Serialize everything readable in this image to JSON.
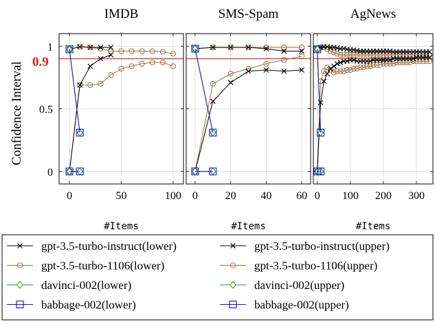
{
  "y_axis_label": "Confidence Interval",
  "threshold": {
    "value": 0.9,
    "label": "0.9",
    "color": "#e03030"
  },
  "colors": {
    "gpt-3.5-turbo-instruct": "#000000",
    "gpt-3.5-turbo-1106": "#a0703e",
    "davinci-002": "#109a10",
    "babbage-002": "#1414cc"
  },
  "legend": {
    "entries": [
      {
        "model": "gpt-3.5-turbo-instruct",
        "marker": "x",
        "label": "gpt-3.5-turbo-instruct(lower)"
      },
      {
        "model": "gpt-3.5-turbo-instruct",
        "marker": "x",
        "label": "gpt-3.5-turbo-instruct(upper)"
      },
      {
        "model": "gpt-3.5-turbo-1106",
        "marker": "o",
        "label": "gpt-3.5-turbo-1106(lower)"
      },
      {
        "model": "gpt-3.5-turbo-1106",
        "marker": "o",
        "label": "gpt-3.5-turbo-1106(upper)"
      },
      {
        "model": "davinci-002",
        "marker": "diamond",
        "label": "davinci-002(lower)"
      },
      {
        "model": "davinci-002",
        "marker": "diamond",
        "label": "davinci-002(upper)"
      },
      {
        "model": "babbage-002",
        "marker": "square",
        "label": "babbage-002(lower)"
      },
      {
        "model": "babbage-002",
        "marker": "square",
        "label": "babbage-002(upper)"
      }
    ]
  },
  "chart_data": [
    {
      "type": "line",
      "title": "IMDB",
      "xlabel": "#Items",
      "ylabel": "Confidence Interval",
      "xlim": [
        -10,
        110
      ],
      "ylim": [
        -0.1,
        1.1
      ],
      "xticks": [
        0,
        50,
        100
      ],
      "yticks": [
        0,
        0.5,
        1
      ],
      "grid": true,
      "series": [
        {
          "model": "gpt-3.5-turbo-instruct",
          "bound": "lower",
          "marker": "x",
          "x": [
            0,
            10,
            20,
            30,
            40
          ],
          "y": [
            0.0,
            0.69,
            0.84,
            0.9,
            0.93
          ]
        },
        {
          "model": "gpt-3.5-turbo-instruct",
          "bound": "upper",
          "marker": "x",
          "x": [
            0,
            10,
            20,
            30,
            40
          ],
          "y": [
            0.975,
            0.995,
            0.99,
            0.99,
            0.99
          ]
        },
        {
          "model": "gpt-3.5-turbo-1106",
          "bound": "lower",
          "marker": "o",
          "x": [
            0,
            10,
            20,
            30,
            40,
            50,
            60,
            70,
            80,
            90,
            100
          ],
          "y": [
            0.0,
            0.69,
            0.69,
            0.7,
            0.77,
            0.82,
            0.84,
            0.86,
            0.87,
            0.87,
            0.84
          ]
        },
        {
          "model": "gpt-3.5-turbo-1106",
          "bound": "upper",
          "marker": "o",
          "x": [
            0,
            10,
            20,
            30,
            40,
            50,
            60,
            70,
            80,
            90,
            100
          ],
          "y": [
            0.975,
            0.995,
            0.99,
            0.98,
            0.96,
            0.96,
            0.96,
            0.96,
            0.96,
            0.955,
            0.94
          ]
        },
        {
          "model": "davinci-002",
          "bound": "lower",
          "marker": "diamond",
          "x": [
            0,
            10
          ],
          "y": [
            0.0,
            0.0
          ]
        },
        {
          "model": "davinci-002",
          "bound": "upper",
          "marker": "diamond",
          "x": [
            0,
            10
          ],
          "y": [
            0.975,
            0.31
          ]
        },
        {
          "model": "babbage-002",
          "bound": "lower",
          "marker": "square",
          "x": [
            0,
            10
          ],
          "y": [
            0.0,
            0.0
          ]
        },
        {
          "model": "babbage-002",
          "bound": "upper",
          "marker": "square",
          "x": [
            0,
            10
          ],
          "y": [
            0.975,
            0.31
          ]
        }
      ]
    },
    {
      "type": "line",
      "title": "SMS-Spam",
      "xlabel": "#Items",
      "ylabel": "",
      "xlim": [
        -5,
        65
      ],
      "ylim": [
        -0.1,
        1.1
      ],
      "xticks": [
        0,
        20,
        40,
        60
      ],
      "yticks": [
        0,
        0.5,
        1
      ],
      "grid": true,
      "series": [
        {
          "model": "gpt-3.5-turbo-instruct",
          "bound": "lower",
          "marker": "x",
          "x": [
            0,
            10,
            20,
            30,
            40,
            50,
            60
          ],
          "y": [
            0.0,
            0.56,
            0.71,
            0.8,
            0.81,
            0.8,
            0.81
          ]
        },
        {
          "model": "gpt-3.5-turbo-instruct",
          "bound": "upper",
          "marker": "x",
          "x": [
            0,
            10,
            20,
            30,
            40,
            50,
            60
          ],
          "y": [
            0.98,
            0.99,
            0.99,
            0.99,
            0.98,
            0.96,
            0.96
          ]
        },
        {
          "model": "gpt-3.5-turbo-1106",
          "bound": "lower",
          "marker": "o",
          "x": [
            0,
            10,
            20,
            30,
            40,
            50,
            60
          ],
          "y": [
            0.0,
            0.7,
            0.78,
            0.82,
            0.86,
            0.89,
            0.92
          ]
        },
        {
          "model": "gpt-3.5-turbo-1106",
          "bound": "upper",
          "marker": "o",
          "x": [
            0,
            10,
            20,
            30,
            40,
            50,
            60
          ],
          "y": [
            0.98,
            0.99,
            0.99,
            0.99,
            0.99,
            0.99,
            0.99
          ]
        },
        {
          "model": "davinci-002",
          "bound": "lower",
          "marker": "diamond",
          "x": [
            0,
            10
          ],
          "y": [
            0.0,
            0.0
          ]
        },
        {
          "model": "davinci-002",
          "bound": "upper",
          "marker": "diamond",
          "x": [
            0,
            10
          ],
          "y": [
            0.98,
            0.31
          ]
        },
        {
          "model": "babbage-002",
          "bound": "lower",
          "marker": "square",
          "x": [
            0,
            10
          ],
          "y": [
            0.0,
            0.0
          ]
        },
        {
          "model": "babbage-002",
          "bound": "upper",
          "marker": "square",
          "x": [
            0,
            10
          ],
          "y": [
            0.98,
            0.31
          ]
        }
      ]
    },
    {
      "type": "line",
      "title": "AgNews",
      "xlabel": "#Items",
      "ylabel": "",
      "xlim": [
        -12,
        350
      ],
      "ylim": [
        -0.1,
        1.1
      ],
      "xticks": [
        0,
        100,
        200,
        300
      ],
      "yticks": [
        0,
        0.5,
        1
      ],
      "grid": true,
      "series": [
        {
          "model": "gpt-3.5-turbo-instruct",
          "bound": "lower",
          "marker": "x",
          "x": [
            0,
            10,
            20,
            30,
            40,
            50,
            60,
            70,
            80,
            90,
            100,
            110,
            120,
            130,
            140,
            150,
            160,
            170,
            180,
            190,
            200,
            210,
            220,
            230,
            240,
            250,
            260,
            270,
            280,
            290,
            300,
            310,
            320,
            330,
            340
          ],
          "y": [
            0.0,
            0.55,
            0.72,
            0.78,
            0.82,
            0.84,
            0.86,
            0.87,
            0.88,
            0.88,
            0.89,
            0.89,
            0.88,
            0.88,
            0.88,
            0.88,
            0.88,
            0.89,
            0.89,
            0.89,
            0.89,
            0.89,
            0.89,
            0.9,
            0.9,
            0.9,
            0.9,
            0.9,
            0.9,
            0.9,
            0.91,
            0.91,
            0.91,
            0.91,
            0.91
          ]
        },
        {
          "model": "gpt-3.5-turbo-instruct",
          "bound": "upper",
          "marker": "x",
          "x": [
            0,
            10,
            20,
            30,
            40,
            50,
            60,
            70,
            80,
            90,
            100,
            110,
            120,
            130,
            140,
            150,
            160,
            170,
            180,
            190,
            200,
            210,
            220,
            230,
            240,
            250,
            260,
            270,
            280,
            290,
            300,
            310,
            320,
            330,
            340
          ],
          "y": [
            0.975,
            0.99,
            0.995,
            0.995,
            0.99,
            0.99,
            0.985,
            0.98,
            0.98,
            0.975,
            0.97,
            0.97,
            0.965,
            0.96,
            0.96,
            0.96,
            0.96,
            0.96,
            0.96,
            0.96,
            0.96,
            0.96,
            0.96,
            0.955,
            0.955,
            0.955,
            0.955,
            0.955,
            0.955,
            0.955,
            0.955,
            0.955,
            0.955,
            0.955,
            0.955
          ]
        },
        {
          "model": "gpt-3.5-turbo-1106",
          "bound": "lower",
          "marker": "o",
          "x": [
            0,
            10,
            20,
            30,
            40,
            50,
            60,
            70,
            80,
            90,
            100,
            110,
            120,
            130,
            140,
            150,
            160,
            170,
            180,
            190,
            200,
            210,
            220,
            230,
            240,
            250,
            260,
            270,
            280,
            290,
            300,
            310,
            320,
            330,
            340
          ],
          "y": [
            0.0,
            0.72,
            0.8,
            0.83,
            0.81,
            0.79,
            0.8,
            0.8,
            0.8,
            0.81,
            0.81,
            0.82,
            0.82,
            0.83,
            0.83,
            0.84,
            0.84,
            0.85,
            0.85,
            0.85,
            0.86,
            0.86,
            0.86,
            0.86,
            0.87,
            0.87,
            0.87,
            0.87,
            0.87,
            0.88,
            0.88,
            0.88,
            0.88,
            0.88,
            0.88
          ]
        },
        {
          "model": "gpt-3.5-turbo-1106",
          "bound": "upper",
          "marker": "o",
          "x": [
            0,
            10,
            20,
            30,
            40,
            50,
            60,
            70,
            80,
            90,
            100,
            110,
            120,
            130,
            140,
            150,
            160,
            170,
            180,
            190,
            200,
            210,
            220,
            230,
            240,
            250,
            260,
            270,
            280,
            290,
            300,
            310,
            320,
            330,
            340
          ],
          "y": [
            0.975,
            0.99,
            0.99,
            0.975,
            0.96,
            0.95,
            0.94,
            0.93,
            0.93,
            0.93,
            0.93,
            0.93,
            0.93,
            0.93,
            0.93,
            0.93,
            0.93,
            0.93,
            0.93,
            0.93,
            0.93,
            0.93,
            0.93,
            0.93,
            0.93,
            0.93,
            0.93,
            0.93,
            0.93,
            0.93,
            0.93,
            0.93,
            0.93,
            0.93,
            0.93
          ]
        },
        {
          "model": "davinci-002",
          "bound": "lower",
          "marker": "diamond",
          "x": [
            0,
            10
          ],
          "y": [
            0.0,
            0.0
          ]
        },
        {
          "model": "davinci-002",
          "bound": "upper",
          "marker": "diamond",
          "x": [
            0,
            10
          ],
          "y": [
            0.975,
            0.31
          ]
        },
        {
          "model": "babbage-002",
          "bound": "lower",
          "marker": "square",
          "x": [
            0,
            10
          ],
          "y": [
            0.0,
            0.0
          ]
        },
        {
          "model": "babbage-002",
          "bound": "upper",
          "marker": "square",
          "x": [
            0,
            10
          ],
          "y": [
            0.975,
            0.31
          ]
        }
      ]
    }
  ]
}
